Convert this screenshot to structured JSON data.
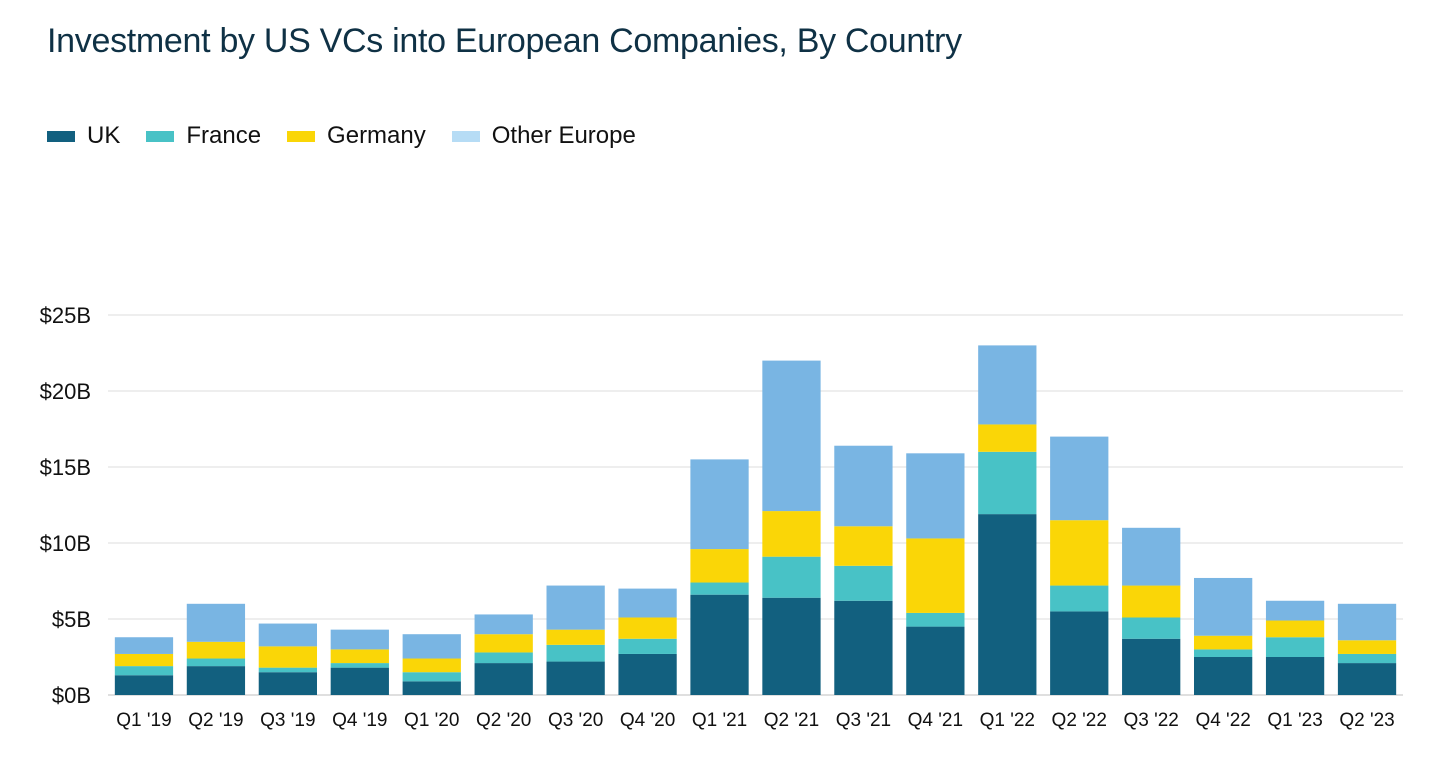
{
  "chart_data": {
    "type": "bar",
    "stacked": true,
    "title": "Investment by US VCs into European Companies, By Country",
    "xlabel": "",
    "ylabel": "",
    "ylim": [
      0,
      25
    ],
    "yticks": [
      0,
      5,
      10,
      15,
      20,
      25
    ],
    "ytick_labels": [
      "$0B",
      "$5B",
      "$10B",
      "$15B",
      "$20B",
      "$25B"
    ],
    "grid": true,
    "legend_position": "top-left",
    "categories": [
      "Q1 '19",
      "Q2 '19",
      "Q3 '19",
      "Q4 '19",
      "Q1 '20",
      "Q2 '20",
      "Q3 '20",
      "Q4 '20",
      "Q1 '21",
      "Q2 '21",
      "Q3 '21",
      "Q4 '21",
      "Q1 '22",
      "Q2 '22",
      "Q3 '22",
      "Q4 '22",
      "Q1 '23",
      "Q2 '23"
    ],
    "series": [
      {
        "name": "UK",
        "color": "#12607f",
        "values": [
          1.3,
          1.9,
          1.5,
          1.8,
          0.9,
          2.1,
          2.2,
          2.7,
          6.6,
          6.4,
          6.2,
          4.5,
          11.9,
          5.5,
          3.7,
          2.5,
          2.5,
          2.1
        ]
      },
      {
        "name": "France",
        "color": "#48c2c6",
        "values": [
          0.6,
          0.5,
          0.3,
          0.3,
          0.6,
          0.7,
          1.1,
          1.0,
          0.8,
          2.7,
          2.3,
          0.9,
          4.1,
          1.7,
          1.4,
          0.5,
          1.3,
          0.6
        ]
      },
      {
        "name": "Germany",
        "color": "#fad607",
        "values": [
          0.8,
          1.1,
          1.4,
          0.9,
          0.9,
          1.2,
          1.0,
          1.4,
          2.2,
          3.0,
          2.6,
          4.9,
          1.8,
          4.3,
          2.1,
          0.9,
          1.1,
          0.9
        ]
      },
      {
        "name": "Other Europe",
        "color": "#79b5e3",
        "values": [
          1.1,
          2.5,
          1.5,
          1.3,
          1.6,
          1.3,
          2.9,
          1.9,
          5.9,
          9.9,
          5.3,
          5.6,
          5.2,
          5.5,
          3.8,
          3.8,
          1.3,
          2.4
        ]
      }
    ]
  },
  "legend_swatch_colors": [
    "#12607f",
    "#48c2c6",
    "#fad607",
    "#b6dcf5"
  ]
}
